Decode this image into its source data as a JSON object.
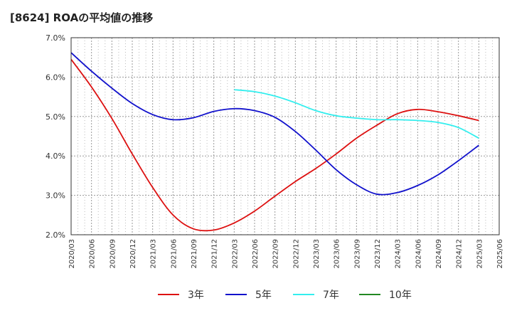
{
  "chart_data": {
    "type": "line",
    "title": "[8624]  ROAの平均値の推移",
    "xlabel": "",
    "ylabel": "",
    "x": [
      "2020/03",
      "2020/06",
      "2020/09",
      "2020/12",
      "2021/03",
      "2021/06",
      "2021/09",
      "2021/12",
      "2022/03",
      "2022/06",
      "2022/09",
      "2022/12",
      "2023/03",
      "2023/06",
      "2023/09",
      "2023/12",
      "2024/03",
      "2024/06",
      "2024/09",
      "2024/12",
      "2025/03",
      "2025/06"
    ],
    "y_ticks": [
      "2.0%",
      "3.0%",
      "4.0%",
      "5.0%",
      "6.0%",
      "7.0%"
    ],
    "ylim": [
      2.0,
      7.0
    ],
    "grid": true,
    "legend_position": "bottom",
    "series": [
      {
        "name": "3年",
        "color": "#dd1111",
        "values": [
          6.45,
          5.75,
          4.95,
          4.05,
          3.2,
          2.5,
          2.15,
          2.12,
          2.3,
          2.6,
          2.98,
          3.35,
          3.68,
          4.05,
          4.45,
          4.78,
          5.07,
          5.18,
          5.12,
          5.02,
          4.9,
          null
        ]
      },
      {
        "name": "5年",
        "color": "#1111cc",
        "values": [
          6.62,
          6.15,
          5.72,
          5.33,
          5.05,
          4.92,
          4.97,
          5.13,
          5.2,
          5.15,
          4.98,
          4.62,
          4.15,
          3.65,
          3.27,
          3.03,
          3.07,
          3.25,
          3.52,
          3.88,
          4.27,
          null
        ]
      },
      {
        "name": "7年",
        "color": "#33eeee",
        "values": [
          null,
          null,
          null,
          null,
          null,
          null,
          null,
          null,
          5.68,
          5.63,
          5.52,
          5.35,
          5.15,
          5.02,
          4.96,
          4.92,
          4.92,
          4.9,
          4.85,
          4.72,
          4.45,
          null
        ]
      },
      {
        "name": "10年",
        "color": "#228822",
        "values": [
          null,
          null,
          null,
          null,
          null,
          null,
          null,
          null,
          null,
          null,
          null,
          null,
          null,
          null,
          null,
          null,
          null,
          null,
          null,
          null,
          null,
          null
        ]
      }
    ]
  }
}
